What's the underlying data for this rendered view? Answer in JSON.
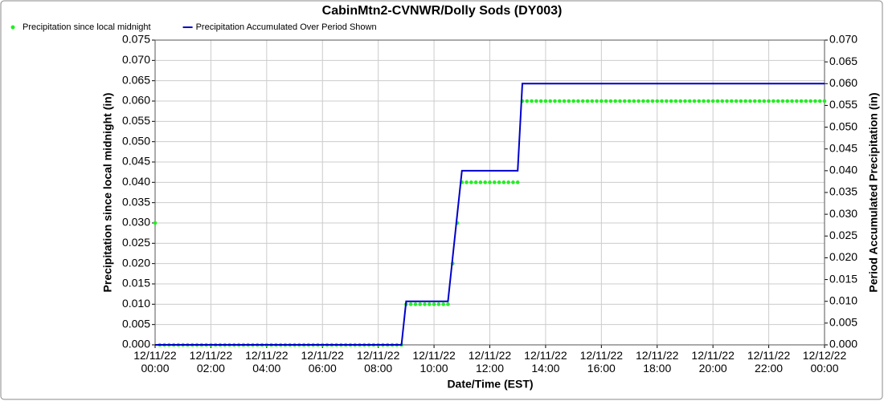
{
  "chart_data": {
    "type": "line",
    "title": "CabinMtn2-CVNWR/Dolly Sods (DY003)",
    "xlabel": "Date/Time (EST)",
    "ylabel": "Precipitation since local midnight (in)",
    "y2label": "Period Accumulated Precipitation (in)",
    "grid": true,
    "legend": "top-left",
    "x": [
      0,
      10,
      20,
      30,
      40,
      50,
      60,
      70,
      80,
      90,
      100,
      110,
      120,
      130,
      140,
      150,
      160,
      170,
      180,
      190,
      200,
      210,
      220,
      230,
      240,
      250,
      260,
      270,
      280,
      290,
      300,
      310,
      320,
      330,
      340,
      350,
      360,
      370,
      380,
      390,
      400,
      410,
      420,
      430,
      440,
      450,
      460,
      470,
      480,
      490,
      500,
      510,
      520,
      530,
      540,
      550,
      560,
      570,
      580,
      590,
      600,
      610,
      620,
      630,
      640,
      650,
      660,
      670,
      680,
      690,
      700,
      710,
      720,
      730,
      740,
      750,
      760,
      770,
      780,
      790,
      800,
      810,
      820,
      830,
      840,
      850,
      860,
      870,
      880,
      890,
      900,
      910,
      920,
      930,
      940,
      950,
      960,
      970,
      980,
      990,
      1000,
      1010,
      1020,
      1030,
      1040,
      1050,
      1060,
      1070,
      1080,
      1090,
      1100,
      1110,
      1120,
      1130,
      1140,
      1150,
      1160,
      1170,
      1180,
      1190,
      1200,
      1210,
      1220,
      1230,
      1240,
      1250,
      1260,
      1270,
      1280,
      1290,
      1300,
      1310,
      1320,
      1330,
      1340,
      1350,
      1360,
      1370,
      1380,
      1390,
      1400,
      1410,
      1420,
      1430,
      1440
    ],
    "series": [
      {
        "name": "Precipitation since local midnight",
        "color": "#22ee22",
        "style": "markers",
        "axis": "y",
        "values": [
          0.03,
          0,
          0,
          0,
          0,
          0,
          0,
          0,
          0,
          0,
          0,
          0,
          0,
          0,
          0,
          0,
          0,
          0,
          0,
          0,
          0,
          0,
          0,
          0,
          0,
          0,
          0,
          0,
          0,
          0,
          0,
          0,
          0,
          0,
          0,
          0,
          0,
          0,
          0,
          0,
          0,
          0,
          0,
          0,
          0,
          0,
          0,
          0,
          0,
          0,
          0,
          0,
          0,
          0,
          0.01,
          0.01,
          0.01,
          0.01,
          0.01,
          0.01,
          0.01,
          0.01,
          0.01,
          0.01,
          0.02,
          0.03,
          0.04,
          0.04,
          0.04,
          0.04,
          0.04,
          0.04,
          0.04,
          0.04,
          0.04,
          0.04,
          0.04,
          0.04,
          0.04,
          0.06,
          0.06,
          0.06,
          0.06,
          0.06,
          0.06,
          0.06,
          0.06,
          0.06,
          0.06,
          0.06,
          0.06,
          0.06,
          0.06,
          0.06,
          0.06,
          0.06,
          0.06,
          0.06,
          0.06,
          0.06,
          0.06,
          0.06,
          0.06,
          0.06,
          0.06,
          0.06,
          0.06,
          0.06,
          0.06,
          0.06,
          0.06,
          0.06,
          0.06,
          0.06,
          0.06,
          0.06,
          0.06,
          0.06,
          0.06,
          0.06,
          0.06,
          0.06,
          0.06,
          0.06,
          0.06,
          0.06,
          0.06,
          0.06,
          0.06,
          0.06,
          0.06,
          0.06,
          0.06,
          0.06,
          0.06,
          0.06,
          0.06,
          0.06,
          0.06,
          0.06,
          0.06,
          0.06,
          0.06,
          0.06,
          0.06
        ]
      },
      {
        "name": "Precipitation Accumulated Over Period Shown",
        "color": "#0000cc",
        "style": "line",
        "axis": "y2",
        "values": [
          0,
          0,
          0,
          0,
          0,
          0,
          0,
          0,
          0,
          0,
          0,
          0,
          0,
          0,
          0,
          0,
          0,
          0,
          0,
          0,
          0,
          0,
          0,
          0,
          0,
          0,
          0,
          0,
          0,
          0,
          0,
          0,
          0,
          0,
          0,
          0,
          0,
          0,
          0,
          0,
          0,
          0,
          0,
          0,
          0,
          0,
          0,
          0,
          0,
          0,
          0,
          0,
          0,
          0,
          0.01,
          0.01,
          0.01,
          0.01,
          0.01,
          0.01,
          0.01,
          0.01,
          0.01,
          0.01,
          0.02,
          0.03,
          0.04,
          0.04,
          0.04,
          0.04,
          0.04,
          0.04,
          0.04,
          0.04,
          0.04,
          0.04,
          0.04,
          0.04,
          0.04,
          0.06,
          0.06,
          0.06,
          0.06,
          0.06,
          0.06,
          0.06,
          0.06,
          0.06,
          0.06,
          0.06,
          0.06,
          0.06,
          0.06,
          0.06,
          0.06,
          0.06,
          0.06,
          0.06,
          0.06,
          0.06,
          0.06,
          0.06,
          0.06,
          0.06,
          0.06,
          0.06,
          0.06,
          0.06,
          0.06,
          0.06,
          0.06,
          0.06,
          0.06,
          0.06,
          0.06,
          0.06,
          0.06,
          0.06,
          0.06,
          0.06,
          0.06,
          0.06,
          0.06,
          0.06,
          0.06,
          0.06,
          0.06,
          0.06,
          0.06,
          0.06,
          0.06,
          0.06,
          0.06,
          0.06,
          0.06,
          0.06,
          0.06,
          0.06,
          0.06,
          0.06,
          0.06,
          0.06,
          0.06,
          0.06,
          0.06
        ]
      }
    ],
    "xlim": [
      0,
      1440
    ],
    "xticks": [
      {
        "value": 0,
        "label": [
          "12/11/22",
          "00:00"
        ]
      },
      {
        "value": 120,
        "label": [
          "12/11/22",
          "02:00"
        ]
      },
      {
        "value": 240,
        "label": [
          "12/11/22",
          "04:00"
        ]
      },
      {
        "value": 360,
        "label": [
          "12/11/22",
          "06:00"
        ]
      },
      {
        "value": 480,
        "label": [
          "12/11/22",
          "08:00"
        ]
      },
      {
        "value": 600,
        "label": [
          "12/11/22",
          "10:00"
        ]
      },
      {
        "value": 720,
        "label": [
          "12/11/22",
          "12:00"
        ]
      },
      {
        "value": 840,
        "label": [
          "12/11/22",
          "14:00"
        ]
      },
      {
        "value": 960,
        "label": [
          "12/11/22",
          "16:00"
        ]
      },
      {
        "value": 1080,
        "label": [
          "12/11/22",
          "18:00"
        ]
      },
      {
        "value": 1200,
        "label": [
          "12/11/22",
          "20:00"
        ]
      },
      {
        "value": 1320,
        "label": [
          "12/11/22",
          "22:00"
        ]
      },
      {
        "value": 1440,
        "label": [
          "12/12/22",
          "00:00"
        ]
      }
    ],
    "ylim": [
      0,
      0.075
    ],
    "yticks": [
      {
        "value": 0,
        "label": "0.000"
      },
      {
        "value": 0.005,
        "label": "0.005"
      },
      {
        "value": 0.01,
        "label": "0.010"
      },
      {
        "value": 0.015,
        "label": "0.015"
      },
      {
        "value": 0.02,
        "label": "0.020"
      },
      {
        "value": 0.025,
        "label": "0.025"
      },
      {
        "value": 0.03,
        "label": "0.030"
      },
      {
        "value": 0.035,
        "label": "0.035"
      },
      {
        "value": 0.04,
        "label": "0.040"
      },
      {
        "value": 0.045,
        "label": "0.045"
      },
      {
        "value": 0.05,
        "label": "0.050"
      },
      {
        "value": 0.055,
        "label": "0.055"
      },
      {
        "value": 0.06,
        "label": "0.060"
      },
      {
        "value": 0.065,
        "label": "0.065"
      },
      {
        "value": 0.07,
        "label": "0.070"
      },
      {
        "value": 0.075,
        "label": "0.075"
      }
    ],
    "y2lim": [
      0,
      0.07
    ],
    "y2ticks": [
      {
        "value": 0,
        "label": "0.000"
      },
      {
        "value": 0.005,
        "label": "0.005"
      },
      {
        "value": 0.01,
        "label": "0.010"
      },
      {
        "value": 0.015,
        "label": "0.015"
      },
      {
        "value": 0.02,
        "label": "0.020"
      },
      {
        "value": 0.025,
        "label": "0.025"
      },
      {
        "value": 0.03,
        "label": "0.030"
      },
      {
        "value": 0.035,
        "label": "0.035"
      },
      {
        "value": 0.04,
        "label": "0.040"
      },
      {
        "value": 0.045,
        "label": "0.045"
      },
      {
        "value": 0.05,
        "label": "0.050"
      },
      {
        "value": 0.055,
        "label": "0.055"
      },
      {
        "value": 0.06,
        "label": "0.060"
      },
      {
        "value": 0.065,
        "label": "0.065"
      },
      {
        "value": 0.07,
        "label": "0.070"
      }
    ]
  }
}
